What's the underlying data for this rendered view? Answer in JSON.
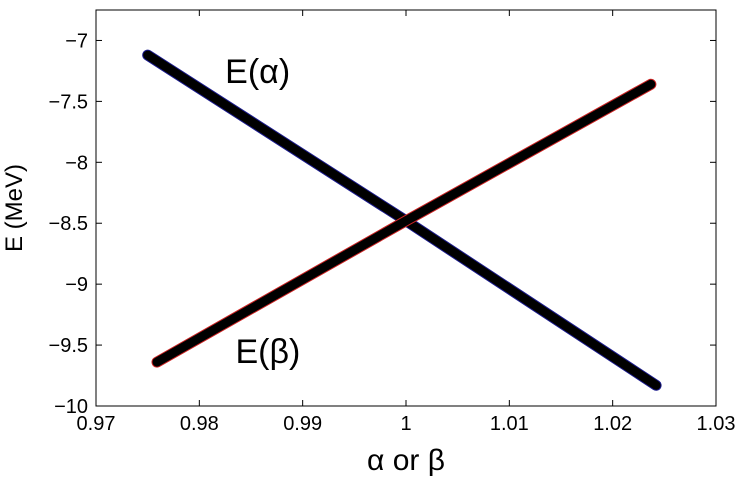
{
  "chart_data": {
    "type": "line",
    "xlabel": "α or β",
    "ylabel": "E (MeV)",
    "xlim": [
      0.97,
      1.03
    ],
    "ylim": [
      -10,
      -6.75
    ],
    "xticks": [
      0.97,
      0.98,
      0.99,
      1.0,
      1.01,
      1.02,
      1.03
    ],
    "xtick_labels": [
      "0.97",
      "0.98",
      "0.99",
      "1",
      "1.01",
      "1.02",
      "1.03"
    ],
    "yticks": [
      -10,
      -9.5,
      -9,
      -8.5,
      -8,
      -7.5,
      -7
    ],
    "ytick_labels": [
      "−10",
      "−9.5",
      "−9",
      "−8.5",
      "−8",
      "−7.5",
      "−7"
    ],
    "grid": false,
    "series": [
      {
        "name": "E(α)",
        "label_text": "E(α)",
        "label_at": [
          0.9825,
          -7.25
        ],
        "color": "#1a1a8c",
        "x": [
          0.975,
          1.0,
          1.0242
        ],
        "y": [
          -7.12,
          -8.48,
          -9.83
        ]
      },
      {
        "name": "E(β)",
        "label_text": "E(β)",
        "label_at": [
          0.9835,
          -9.55
        ],
        "color": "#cc2222",
        "x": [
          0.9759,
          1.0,
          1.0237
        ],
        "y": [
          -9.64,
          -8.48,
          -7.36
        ]
      }
    ]
  }
}
